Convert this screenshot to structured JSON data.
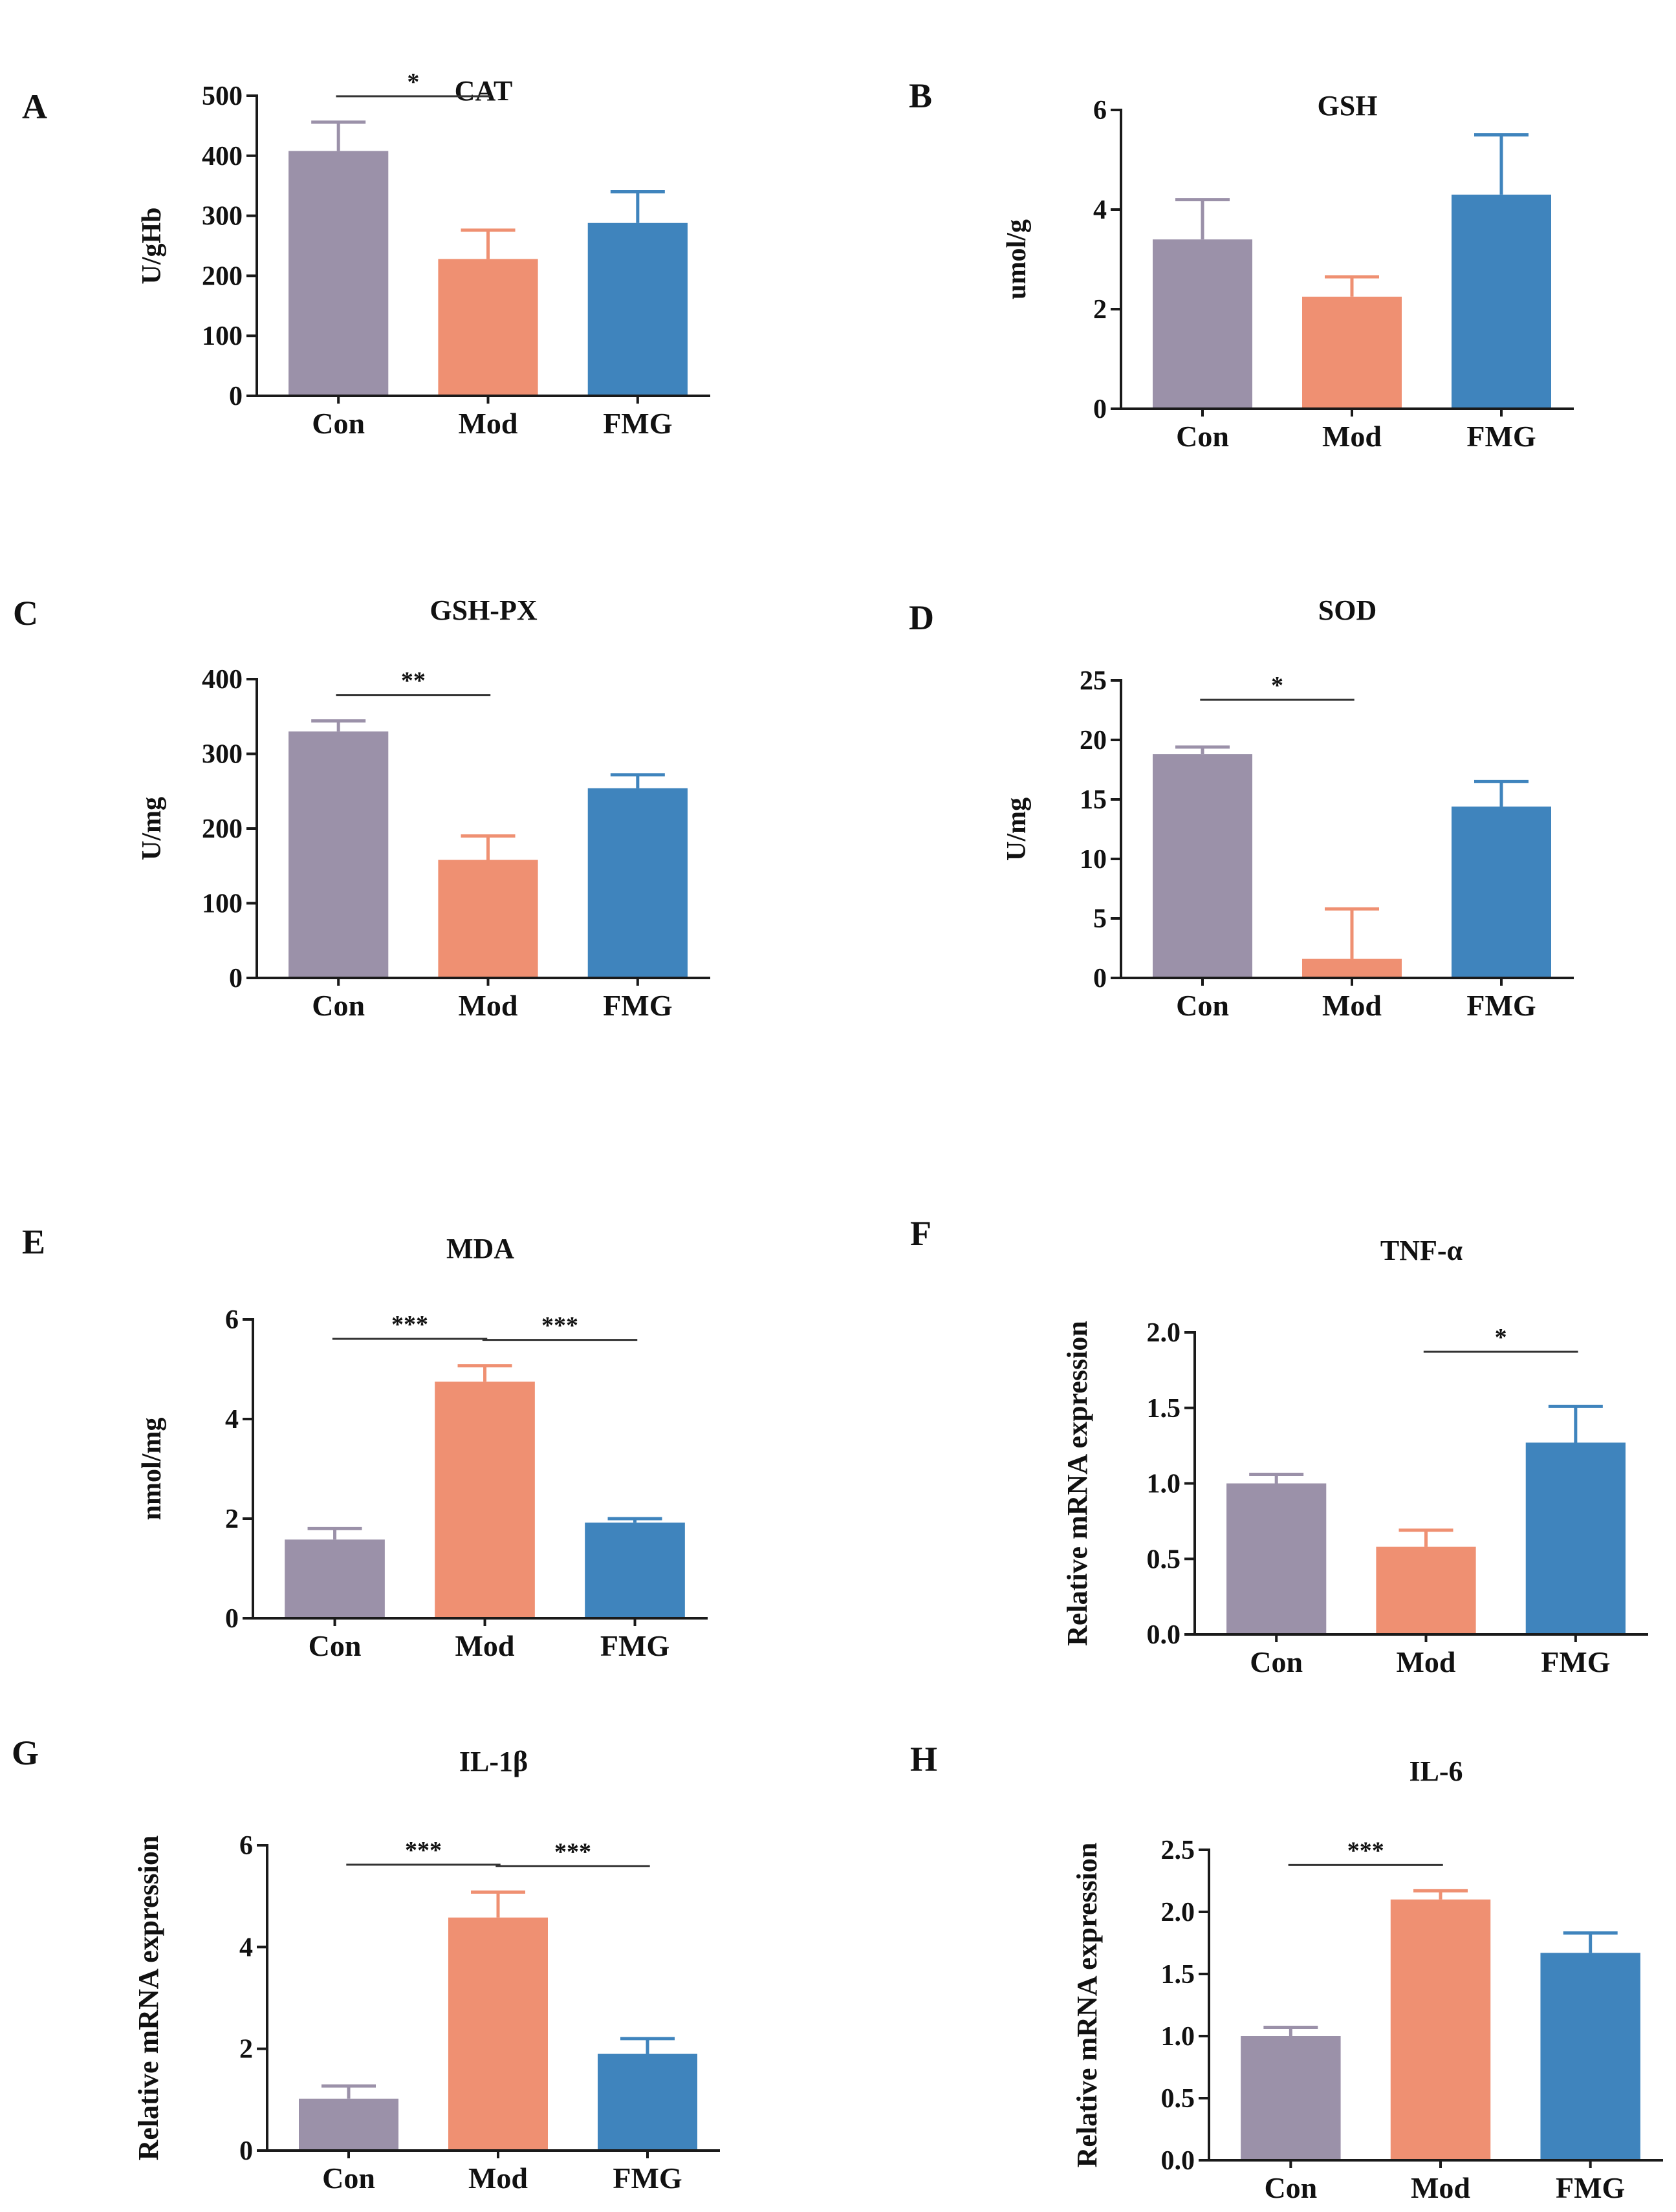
{
  "colors": {
    "Con": "#9b91a9",
    "Mod": "#ef9072",
    "FMG": "#3f84bd",
    "axis": "#1a1a1a"
  },
  "chart_data": [
    {
      "panel": "A",
      "type": "bar",
      "title": "CAT",
      "ylabel": "U/gHb",
      "categories": [
        "Con",
        "Mod",
        "FMG"
      ],
      "values": [
        408,
        228,
        288
      ],
      "errors": [
        48,
        48,
        52
      ],
      "ylim": [
        0,
        500
      ],
      "yticks": [
        0,
        100,
        200,
        300,
        400,
        500
      ],
      "ytick_labels": [
        "0",
        "100",
        "200",
        "300",
        "400",
        "500"
      ],
      "significance": [
        {
          "from": 0,
          "to": 1,
          "label": "*"
        }
      ]
    },
    {
      "panel": "B",
      "type": "bar",
      "title": "GSH",
      "ylabel": "umol/g",
      "categories": [
        "Con",
        "Mod",
        "FMG"
      ],
      "values": [
        3.4,
        2.25,
        4.3
      ],
      "errors": [
        0.8,
        0.4,
        1.2
      ],
      "ylim": [
        0,
        6
      ],
      "yticks": [
        0,
        2,
        4,
        6
      ],
      "ytick_labels": [
        "0",
        "2",
        "4",
        "6"
      ],
      "significance": []
    },
    {
      "panel": "C",
      "type": "bar",
      "title": "GSH-PX",
      "ylabel": "U/mg",
      "categories": [
        "Con",
        "Mod",
        "FMG"
      ],
      "values": [
        330,
        158,
        254
      ],
      "errors": [
        14,
        32,
        18
      ],
      "ylim": [
        0,
        400
      ],
      "yticks": [
        0,
        100,
        200,
        300,
        400
      ],
      "ytick_labels": [
        "0",
        "100",
        "200",
        "300",
        "400"
      ],
      "significance": [
        {
          "from": 0,
          "to": 1,
          "label": "**"
        }
      ]
    },
    {
      "panel": "D",
      "type": "bar",
      "title": "SOD",
      "ylabel": "U/mg",
      "categories": [
        "Con",
        "Mod",
        "FMG"
      ],
      "values": [
        18.8,
        1.6,
        14.4
      ],
      "errors": [
        0.6,
        4.2,
        2.1
      ],
      "ylim": [
        0,
        25
      ],
      "yticks": [
        0,
        5,
        10,
        15,
        20,
        25
      ],
      "ytick_labels": [
        "0",
        "5",
        "10",
        "15",
        "20",
        "25"
      ],
      "significance": [
        {
          "from": 0,
          "to": 1,
          "label": "*"
        }
      ]
    },
    {
      "panel": "E",
      "type": "bar",
      "title": "MDA",
      "ylabel": "nmol/mg",
      "categories": [
        "Con",
        "Mod",
        "FMG"
      ],
      "values": [
        1.58,
        4.75,
        1.92
      ],
      "errors": [
        0.22,
        0.32,
        0.08
      ],
      "ylim": [
        0,
        6
      ],
      "yticks": [
        0,
        2,
        4,
        6
      ],
      "ytick_labels": [
        "0",
        "2",
        "4",
        "6"
      ],
      "significance": [
        {
          "from": 0,
          "to": 1,
          "label": "***"
        },
        {
          "from": 1,
          "to": 2,
          "label": "***"
        }
      ]
    },
    {
      "panel": "F",
      "type": "bar",
      "title": "TNF-α",
      "ylabel": "Relative mRNA expression",
      "categories": [
        "Con",
        "Mod",
        "FMG"
      ],
      "values": [
        1.0,
        0.58,
        1.27
      ],
      "errors": [
        0.06,
        0.11,
        0.24
      ],
      "ylim": [
        0,
        2
      ],
      "yticks": [
        0,
        0.5,
        1,
        1.5,
        2
      ],
      "ytick_labels": [
        "0.0",
        "0.5",
        "1.0",
        "1.5",
        "2.0"
      ],
      "significance": [
        {
          "from": 1,
          "to": 2,
          "label": "*"
        }
      ]
    },
    {
      "panel": "G",
      "type": "bar",
      "title": "IL-1β",
      "ylabel": "Relative mRNA expression",
      "categories": [
        "Con",
        "Mod",
        "FMG"
      ],
      "values": [
        1.02,
        4.58,
        1.9
      ],
      "errors": [
        0.25,
        0.5,
        0.3
      ],
      "ylim": [
        0,
        6
      ],
      "yticks": [
        0,
        2,
        4,
        6
      ],
      "ytick_labels": [
        "0",
        "2",
        "4",
        "6"
      ],
      "significance": [
        {
          "from": 0,
          "to": 1,
          "label": "***"
        },
        {
          "from": 1,
          "to": 2,
          "label": "***"
        }
      ]
    },
    {
      "panel": "H",
      "type": "bar",
      "title": "IL-6",
      "ylabel": "Relative mRNA expression",
      "categories": [
        "Con",
        "Mod",
        "FMG"
      ],
      "values": [
        1.0,
        2.1,
        1.67
      ],
      "errors": [
        0.07,
        0.07,
        0.16
      ],
      "ylim": [
        0,
        2.5
      ],
      "yticks": [
        0,
        0.5,
        1,
        1.5,
        2,
        2.5
      ],
      "ytick_labels": [
        "0.0",
        "0.5",
        "1.0",
        "1.5",
        "2.0",
        "2.5"
      ],
      "significance": [
        {
          "from": 0,
          "to": 1,
          "label": "***"
        }
      ]
    }
  ]
}
